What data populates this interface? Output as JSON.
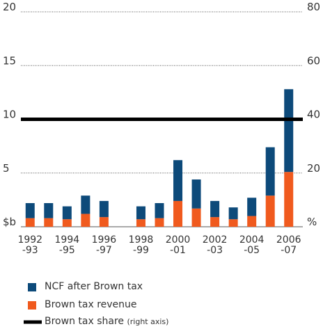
{
  "chart_data": {
    "type": "bar",
    "stacked": true,
    "categories": [
      "1992\n-93",
      null,
      "1994\n-95",
      null,
      "1996\n-97",
      null,
      "1998\n-99",
      null,
      "2000\n-01",
      null,
      "2002\n-03",
      null,
      "2004\n-05",
      null,
      "2006\n-07"
    ],
    "series": [
      {
        "name": "Brown tax revenue",
        "color": "#f05a1e",
        "values": [
          0.8,
          0.8,
          0.7,
          1.2,
          0.9,
          0,
          0.7,
          0.8,
          2.4,
          1.7,
          0.9,
          0.7,
          1.0,
          2.9,
          5.1
        ]
      },
      {
        "name": "NCF after Brown tax",
        "color": "#0d4a7a",
        "values": [
          1.4,
          1.4,
          1.2,
          1.7,
          1.5,
          0,
          1.2,
          1.4,
          3.8,
          2.7,
          1.5,
          1.1,
          1.7,
          4.5,
          7.7
        ]
      }
    ],
    "legend_order": [
      1,
      0
    ],
    "share_line": {
      "name": "Brown tax share",
      "note": "(right axis)",
      "value": 40,
      "axis": "y2",
      "color": "#000000"
    },
    "ylim": [
      0,
      20
    ],
    "yticks": [
      {
        "value": 0,
        "label": "$b"
      },
      5,
      10,
      15,
      20
    ],
    "y2lim": [
      0,
      80
    ],
    "y2ticks": [
      {
        "value": 0,
        "label": "%"
      },
      20,
      40,
      60,
      80
    ],
    "grid": true
  }
}
